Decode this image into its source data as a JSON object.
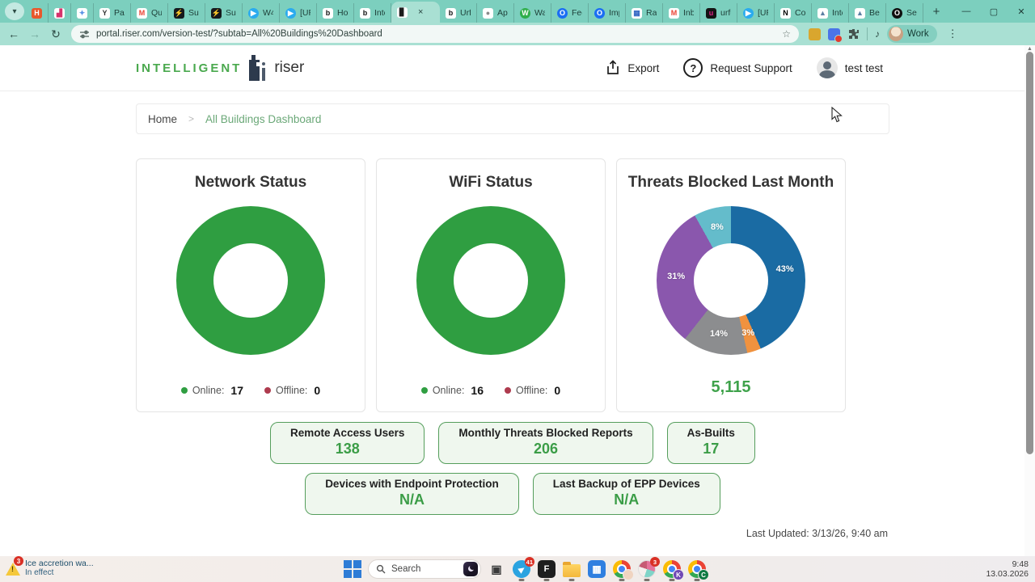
{
  "browser": {
    "new_tab_label": "+",
    "window_controls": [
      {
        "name": "minimize",
        "glyph": "—"
      },
      {
        "name": "maximize",
        "glyph": "▢"
      },
      {
        "name": "close",
        "glyph": "✕"
      }
    ],
    "tab_search_glyph": "▾",
    "tabs": [
      {
        "label": "",
        "icon": "h-app-icon",
        "glyph": "H",
        "bg": "#e8582c",
        "fg": "#ffffff"
      },
      {
        "label": "",
        "icon": "analytics-icon",
        "glyph": "▟",
        "bg": "#ffffff",
        "fg": "#d6336c"
      },
      {
        "label": "",
        "icon": "blue-app-icon",
        "glyph": "✦",
        "bg": "#ffffff",
        "fg": "#5b93e6"
      },
      {
        "label": "Pass",
        "icon": "y-app-icon",
        "glyph": "Y",
        "bg": "#ffffff",
        "fg": "#333333"
      },
      {
        "label": "Que",
        "icon": "gmail-icon",
        "glyph": "M",
        "bg": "#ffffff",
        "fg": "#ea4335"
      },
      {
        "label": "Sup",
        "icon": "lightning-icon",
        "glyph": "⚡",
        "bg": "#16191d",
        "fg": "#7ef0a0"
      },
      {
        "label": "Sup",
        "icon": "lightning-icon",
        "glyph": "⚡",
        "bg": "#16191d",
        "fg": "#7ef0a0"
      },
      {
        "label": "W4",
        "icon": "telegram-icon",
        "glyph": "▶",
        "bg": "#2aabee",
        "fg": "#ffffff",
        "round": true
      },
      {
        "label": "[UR",
        "icon": "telegram-icon",
        "glyph": "▶",
        "bg": "#2aabee",
        "fg": "#ffffff",
        "round": true
      },
      {
        "label": "Hor",
        "icon": "bubble-icon",
        "glyph": "b",
        "bg": "#ffffff",
        "fg": "#111111"
      },
      {
        "label": "Inte",
        "icon": "bubble-icon",
        "glyph": "b",
        "bg": "#ffffff",
        "fg": "#111111"
      },
      {
        "label": "",
        "icon": "riser-favicon",
        "glyph": "▊",
        "bg": "#ffffff",
        "fg": "#1c1c1c",
        "active": true,
        "close": "×"
      },
      {
        "label": "Urf",
        "icon": "bubble-icon",
        "glyph": "b",
        "bg": "#ffffff",
        "fg": "#111111"
      },
      {
        "label": "App",
        "icon": "apple-icon",
        "glyph": "●",
        "bg": "#ffffff",
        "fg": "#8a8a8a"
      },
      {
        "label": "Wa",
        "icon": "green-app-icon",
        "glyph": "W",
        "bg": "#2fae4a",
        "fg": "#ffffff",
        "round": true
      },
      {
        "label": "Fee",
        "icon": "target-icon",
        "glyph": "O",
        "bg": "#1b6ef3",
        "fg": "#ffffff",
        "round": true
      },
      {
        "label": "Imp",
        "icon": "target-icon",
        "glyph": "O",
        "bg": "#1b6ef3",
        "fg": "#ffffff",
        "round": true
      },
      {
        "label": "Rap",
        "icon": "calendar-icon",
        "glyph": "▦",
        "bg": "#ffffff",
        "fg": "#3568c4"
      },
      {
        "label": "Inb",
        "icon": "gmail-icon",
        "glyph": "M",
        "bg": "#ffffff",
        "fg": "#ea4335"
      },
      {
        "label": "urfu",
        "icon": "u-app-icon",
        "glyph": "u",
        "bg": "#141414",
        "fg": "#e0218a"
      },
      {
        "label": "[UR",
        "icon": "telegram-icon",
        "glyph": "▶",
        "bg": "#2aabee",
        "fg": "#ffffff",
        "round": true
      },
      {
        "label": "Con",
        "icon": "notion-icon",
        "glyph": "N",
        "bg": "#ffffff",
        "fg": "#000000"
      },
      {
        "label": "Inte",
        "icon": "chart-app-icon",
        "glyph": "▲",
        "bg": "#ffffff",
        "fg": "#5c7fa3"
      },
      {
        "label": "Ben",
        "icon": "chart-app-icon",
        "glyph": "▲",
        "bg": "#ffffff",
        "fg": "#5c7fa3"
      },
      {
        "label": "Sec",
        "icon": "dark-o-icon",
        "glyph": "O",
        "bg": "#101010",
        "fg": "#ffffff",
        "round": true
      }
    ],
    "toolbar": {
      "back_glyph": "←",
      "forward_glyph": "→",
      "refresh_glyph": "↻",
      "url": "portal.riser.com/version-test/?subtab=All%20Buildings%20Dashboard",
      "star_glyph": "☆",
      "media_glyph": "♪",
      "profile_label": "Work",
      "kebab_glyph": "⋮"
    }
  },
  "header": {
    "logo_intelligent": "INTELLIGENT",
    "logo_riser": "riser",
    "export_label": "Export",
    "request_support_label": "Request Support",
    "question_glyph": "?",
    "user_name": "test test"
  },
  "breadcrumb": {
    "home": "Home",
    "separator": ">",
    "current": "All Buildings Dashboard"
  },
  "chart_data": [
    {
      "type": "donut",
      "title": "Network Status",
      "labels": [
        "Online",
        "Offline"
      ],
      "values": [
        17,
        0
      ],
      "colors": [
        "#2f9e41",
        "#ae3b4e"
      ],
      "legend": [
        {
          "text": "Online:",
          "value": "17",
          "dot": "#2f9e41"
        },
        {
          "text": "Offline:",
          "value": "0",
          "dot": "#ae3b4e"
        }
      ]
    },
    {
      "type": "donut",
      "title": "WiFi Status",
      "labels": [
        "Online",
        "Offline"
      ],
      "values": [
        16,
        0
      ],
      "colors": [
        "#2f9e41",
        "#ae3b4e"
      ],
      "legend": [
        {
          "text": "Online:",
          "value": "16",
          "dot": "#2f9e41"
        },
        {
          "text": "Offline:",
          "value": "0",
          "dot": "#ae3b4e"
        }
      ]
    },
    {
      "type": "donut",
      "title": "Threats Blocked Last Month",
      "labels": [
        "43%",
        "3%",
        "14%",
        "31%",
        "8%"
      ],
      "values": [
        43,
        3,
        14,
        31,
        8
      ],
      "colors": [
        "#1a6ba3",
        "#f0923f",
        "#8c8d8f",
        "#8a57ad",
        "#64bccb"
      ],
      "slice_labels": true,
      "center_total": "5,115"
    }
  ],
  "dashboard": {
    "stats_row1": [
      {
        "label": "Remote Access Users",
        "value": "138"
      },
      {
        "label": "Monthly Threats Blocked Reports",
        "value": "206"
      },
      {
        "label": "As-Builts",
        "value": "17"
      }
    ],
    "stats_row2": [
      {
        "label": "Devices with Endpoint Protection",
        "value": "N/A"
      },
      {
        "label": "Last Backup of EPP Devices",
        "value": "N/A"
      }
    ],
    "last_updated": "Last Updated: 3/13/26, 9:40 am"
  },
  "scrollbar": {
    "up_arrow": "▲"
  },
  "taskbar": {
    "notification": {
      "badge": "3",
      "title": "Ice accretion wa...",
      "subtitle": "In effect"
    },
    "search_placeholder": "Search",
    "icons": [
      {
        "type": "start",
        "name": "start-button"
      },
      {
        "type": "search",
        "name": "search-box"
      },
      {
        "type": "glyph",
        "name": "task-view-icon",
        "glyph": "▣",
        "bg": "transparent",
        "fg": "#3a3a3a",
        "size": 14
      },
      {
        "type": "glyph",
        "name": "telegram-icon",
        "glyph": "▶",
        "bg": "#2ba3e0",
        "fg": "#ffffff",
        "round": true,
        "badge": "41",
        "running": true,
        "size": 9,
        "rotate": -35
      },
      {
        "type": "glyph",
        "name": "figma-icon",
        "glyph": "F",
        "bg": "#1e1e1e",
        "fg": "#ffffff",
        "running": true,
        "size": 11
      },
      {
        "type": "folder",
        "name": "file-explorer-icon",
        "running": true
      },
      {
        "type": "glyph",
        "name": "microsoft-store-icon",
        "glyph": "▦",
        "bg": "#2f7fe0",
        "fg": "#ffffff",
        "size": 12
      },
      {
        "type": "chrome",
        "name": "chrome-profile-icon",
        "overlay": "",
        "overlay_bg": "#f0d4c0",
        "overlay_fg": "#7a4a3a",
        "running": true
      },
      {
        "type": "pie",
        "name": "colorful-app-icon",
        "badge": "3",
        "running": true
      },
      {
        "type": "chrome",
        "name": "chrome-k-icon",
        "overlay": "K",
        "overlay_bg": "#7048b5",
        "overlay_fg": "#ffffff",
        "running": true
      },
      {
        "type": "chrome",
        "name": "chrome-c-icon",
        "overlay": "C",
        "overlay_bg": "#0f7a43",
        "overlay_fg": "#ffffff",
        "running": true
      }
    ],
    "clock_time": "9:48",
    "clock_date": "13.03.2026"
  }
}
